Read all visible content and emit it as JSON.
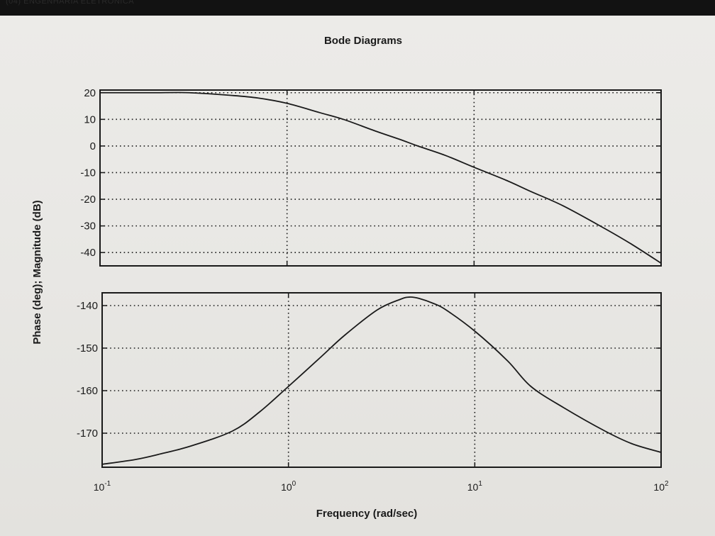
{
  "header_text": "(04) ENGENHARIA ELETRONICA",
  "chart_data": {
    "type": "line",
    "title": "Bode Diagrams",
    "xlabel": "Frequency (rad/sec)",
    "ylabel": "Phase (deg); Magnitude (dB)",
    "xscale": "log",
    "xlim": [
      0.1,
      100
    ],
    "x_ticks": [
      {
        "base": "10",
        "exp": "-1",
        "value": 0.1
      },
      {
        "base": "10",
        "exp": "0",
        "value": 1
      },
      {
        "base": "10",
        "exp": "1",
        "value": 10
      },
      {
        "base": "10",
        "exp": "2",
        "value": 100
      }
    ],
    "grid": true,
    "colors": {
      "line": "#1a1a1a",
      "grid": "#1a1a1a"
    },
    "magnitude": {
      "ylim": [
        -45,
        21
      ],
      "y_ticks": [
        "20",
        "10",
        "0",
        "-10",
        "-20",
        "-30",
        "-40"
      ],
      "y_tick_values": [
        20,
        10,
        0,
        -10,
        -20,
        -30,
        -40
      ],
      "x": [
        0.1,
        0.15,
        0.2,
        0.3,
        0.5,
        0.7,
        1,
        1.5,
        2,
        3,
        4,
        5,
        7,
        10,
        15,
        20,
        30,
        50,
        70,
        100
      ],
      "y": [
        20,
        20,
        20,
        20,
        19,
        18,
        16,
        12.5,
        10,
        5.5,
        2.5,
        0,
        -3.5,
        -8,
        -13,
        -17,
        -22.5,
        -31,
        -37,
        -44
      ]
    },
    "phase": {
      "ylim": [
        -178,
        -137
      ],
      "y_ticks": [
        "-140",
        "-150",
        "-160",
        "-170"
      ],
      "y_tick_values": [
        -140,
        -150,
        -160,
        -170
      ],
      "x": [
        0.1,
        0.15,
        0.2,
        0.3,
        0.5,
        0.7,
        1,
        1.5,
        2,
        3,
        4,
        4.5,
        5,
        6,
        7,
        10,
        15,
        20,
        30,
        50,
        70,
        100
      ],
      "y": [
        -177.3,
        -176.2,
        -175,
        -173,
        -169.5,
        -165,
        -159,
        -152,
        -147,
        -141,
        -138.5,
        -138,
        -138.3,
        -139.5,
        -141,
        -146,
        -153,
        -159,
        -164,
        -169.5,
        -172.5,
        -174.5
      ]
    }
  }
}
